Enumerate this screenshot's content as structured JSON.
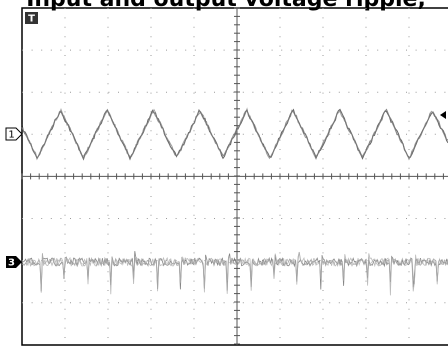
{
  "header": {
    "title": "Input and output voltage ripple,"
  },
  "markers": {
    "trigger": "T",
    "channel_1": "1",
    "channel_3": "3"
  }
}
